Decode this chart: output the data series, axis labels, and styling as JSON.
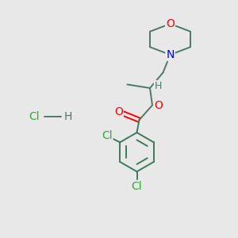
{
  "bg_color": "#e8e8e8",
  "atom_colors": {
    "O": "#ff0000",
    "N": "#0000ff",
    "Cl_atom": "#33aa33",
    "C": "#000000",
    "H": "#000000"
  },
  "bond_color_chain": "#4a7a6a",
  "bond_color_ring": "#4a7a6a",
  "font_size_atoms": 10,
  "line_color": "#4a7a6a",
  "title": ""
}
